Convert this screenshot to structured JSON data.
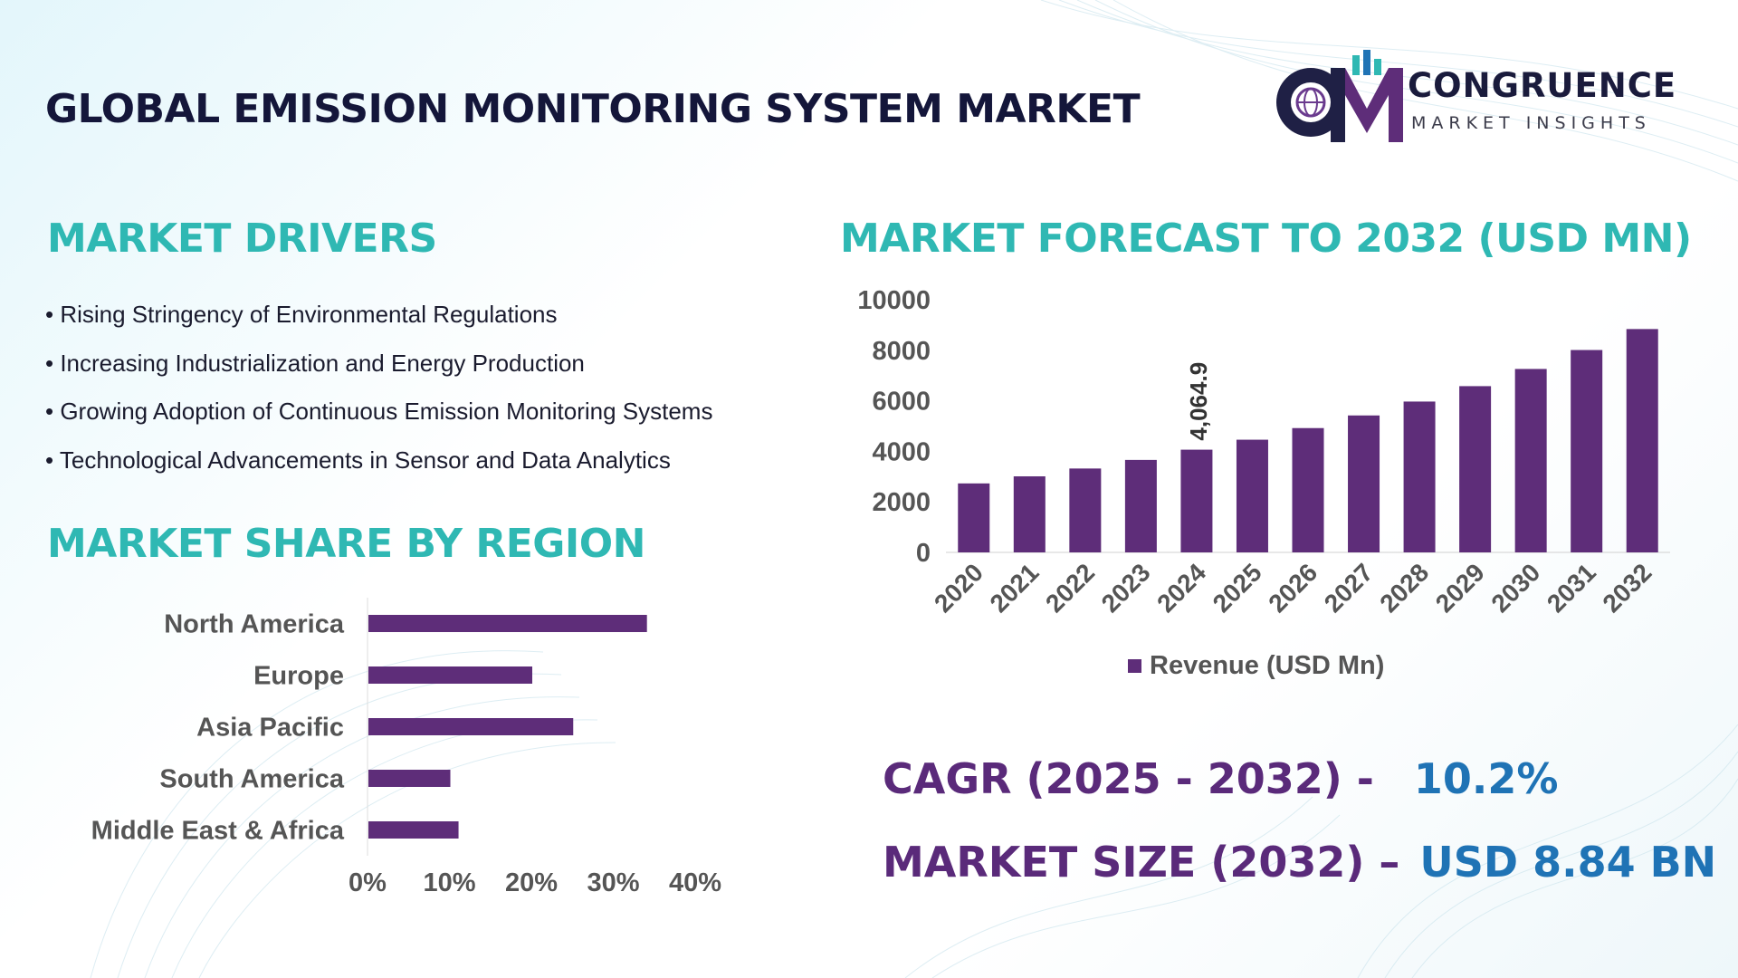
{
  "header": {
    "title": "GLOBAL EMISSION MONITORING SYSTEM MARKET"
  },
  "logo": {
    "icon": "globe-monogram-icon",
    "name": "CONGRUENCE",
    "subtitle": "MARKET INSIGHTS"
  },
  "drivers": {
    "title": "MARKET DRIVERS",
    "items": [
      "Rising Stringency of Environmental Regulations",
      "Increasing Industrialization and Energy Production",
      "Growing Adoption of Continuous Emission Monitoring Systems",
      "Technological Advancements in Sensor and Data Analytics"
    ]
  },
  "region": {
    "title": "MARKET SHARE BY REGION"
  },
  "forecast": {
    "title": "MARKET FORECAST TO 2032 (USD MN)"
  },
  "stats": {
    "cagr_label": "CAGR (2025 - 2032) -",
    "cagr_value": "10.2%",
    "size_label": "MARKET SIZE (2032) –",
    "size_value": "USD 8.84 BN"
  },
  "colors": {
    "bar": "#5e2d79",
    "accent": "#2fb8b3",
    "stat_label": "#5a2a7a",
    "stat_value": "#1f73b5",
    "axis_text": "#555555"
  },
  "chart_data": [
    {
      "type": "bar",
      "orientation": "horizontal",
      "categories": [
        "North America",
        "Europe",
        "Asia Pacific",
        "South America",
        "Middle East & Africa"
      ],
      "values": [
        34,
        20,
        25,
        10,
        11
      ],
      "x_ticks": [
        "0%",
        "10%",
        "20%",
        "30%",
        "40%"
      ],
      "xlim": [
        0,
        40
      ],
      "grid": false
    },
    {
      "type": "bar",
      "categories": [
        "2020",
        "2021",
        "2022",
        "2023",
        "2024",
        "2025",
        "2026",
        "2027",
        "2028",
        "2029",
        "2030",
        "2031",
        "2032"
      ],
      "series": [
        {
          "name": "Revenue (USD Mn)",
          "values": [
            2730,
            3010,
            3320,
            3660,
            4064.9,
            4460,
            4920,
            5420,
            5970,
            6580,
            7260,
            8010,
            8840
          ]
        }
      ],
      "data_labels": [
        {
          "category": "2024",
          "text": "4,064.9"
        }
      ],
      "y_ticks": [
        "0",
        "2000",
        "4000",
        "6000",
        "8000",
        "10000"
      ],
      "ylim": [
        0,
        10000
      ],
      "legend": "bottom",
      "grid": false
    }
  ]
}
